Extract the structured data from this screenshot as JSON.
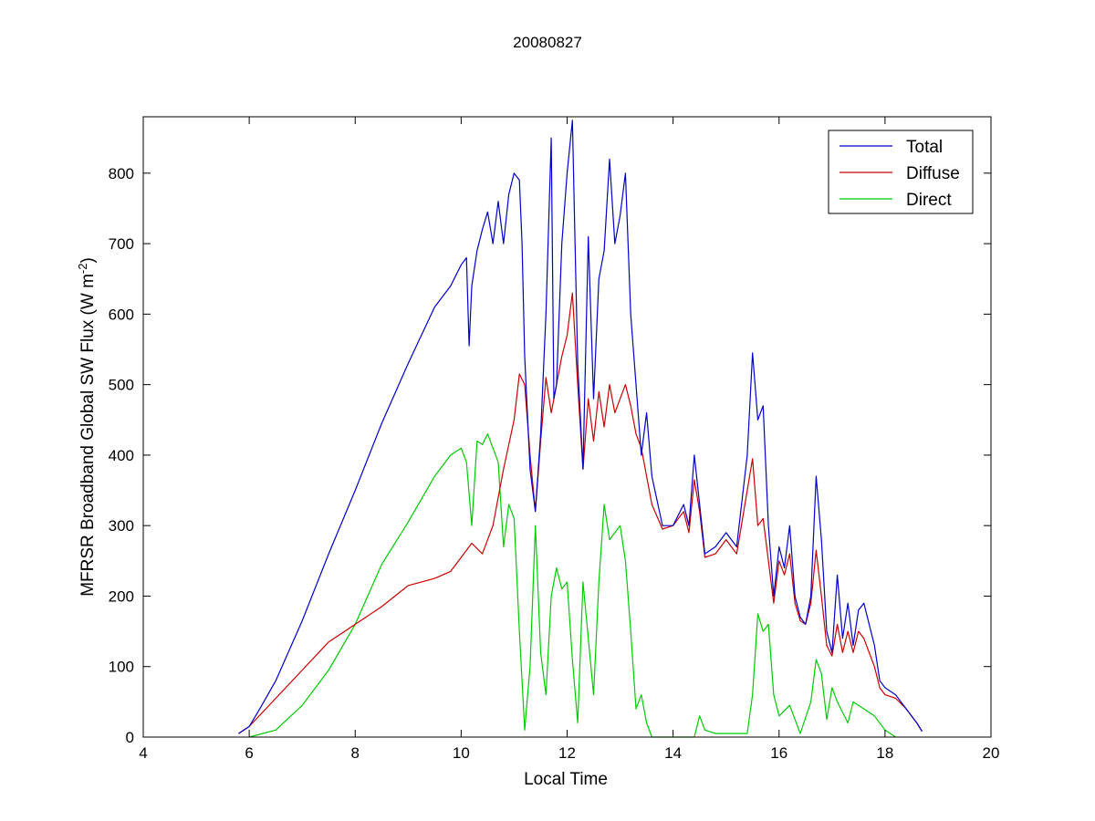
{
  "chart_data": {
    "type": "line",
    "title": "20080827",
    "xlabel": "Local Time",
    "ylabel_main": "MFRSR Broadband Global SW Flux (W m",
    "ylabel_sup": "-2",
    "ylabel_tail": ")",
    "xlim": [
      4,
      20
    ],
    "ylim": [
      0,
      880
    ],
    "xticks": [
      4,
      6,
      8,
      10,
      12,
      14,
      16,
      18,
      20
    ],
    "yticks": [
      0,
      100,
      200,
      300,
      400,
      500,
      600,
      700,
      800
    ],
    "grid": false,
    "legend_position": "top-right",
    "series": [
      {
        "name": "Total",
        "color": "#0000cc",
        "x": [
          5.8,
          6.0,
          6.2,
          6.5,
          7.0,
          7.5,
          8.0,
          8.5,
          9.0,
          9.5,
          9.8,
          10.0,
          10.1,
          10.15,
          10.2,
          10.3,
          10.4,
          10.5,
          10.6,
          10.7,
          10.8,
          10.9,
          11.0,
          11.1,
          11.15,
          11.2,
          11.3,
          11.4,
          11.5,
          11.6,
          11.7,
          11.75,
          11.8,
          11.9,
          12.0,
          12.1,
          12.15,
          12.2,
          12.3,
          12.4,
          12.5,
          12.6,
          12.7,
          12.8,
          12.9,
          13.0,
          13.1,
          13.2,
          13.3,
          13.4,
          13.5,
          13.6,
          13.8,
          14.0,
          14.2,
          14.3,
          14.4,
          14.5,
          14.6,
          14.8,
          15.0,
          15.2,
          15.4,
          15.5,
          15.6,
          15.7,
          15.8,
          15.9,
          16.0,
          16.1,
          16.2,
          16.3,
          16.4,
          16.5,
          16.6,
          16.7,
          16.8,
          16.9,
          17.0,
          17.1,
          17.2,
          17.3,
          17.4,
          17.5,
          17.6,
          17.7,
          17.8,
          17.9,
          18.0,
          18.2,
          18.4,
          18.6,
          18.7
        ],
        "y": [
          5,
          15,
          40,
          80,
          165,
          260,
          350,
          445,
          530,
          610,
          640,
          670,
          680,
          555,
          640,
          690,
          720,
          745,
          700,
          760,
          700,
          770,
          800,
          790,
          700,
          540,
          380,
          320,
          430,
          600,
          850,
          480,
          500,
          700,
          800,
          875,
          700,
          530,
          380,
          710,
          480,
          650,
          690,
          820,
          700,
          740,
          800,
          600,
          500,
          400,
          460,
          370,
          300,
          300,
          330,
          300,
          400,
          330,
          260,
          270,
          290,
          270,
          400,
          545,
          450,
          470,
          300,
          200,
          270,
          240,
          300,
          200,
          170,
          160,
          200,
          370,
          280,
          150,
          120,
          230,
          140,
          190,
          130,
          180,
          190,
          160,
          130,
          80,
          70,
          60,
          40,
          20,
          8
        ]
      },
      {
        "name": "Diffuse",
        "color": "#cc0000",
        "x": [
          5.8,
          6.0,
          6.5,
          7.0,
          7.5,
          8.0,
          8.5,
          9.0,
          9.5,
          9.8,
          10.0,
          10.2,
          10.4,
          10.6,
          10.8,
          11.0,
          11.1,
          11.2,
          11.3,
          11.4,
          11.5,
          11.6,
          11.7,
          11.8,
          11.9,
          12.0,
          12.1,
          12.2,
          12.3,
          12.4,
          12.5,
          12.6,
          12.7,
          12.8,
          12.9,
          13.0,
          13.1,
          13.2,
          13.3,
          13.4,
          13.5,
          13.6,
          13.8,
          14.0,
          14.2,
          14.3,
          14.4,
          14.5,
          14.6,
          14.8,
          15.0,
          15.2,
          15.4,
          15.5,
          15.6,
          15.7,
          15.8,
          15.9,
          16.0,
          16.1,
          16.2,
          16.3,
          16.4,
          16.5,
          16.6,
          16.7,
          16.8,
          16.9,
          17.0,
          17.1,
          17.2,
          17.3,
          17.4,
          17.5,
          17.6,
          17.7,
          17.8,
          17.9,
          18.0,
          18.2,
          18.4,
          18.6,
          18.7
        ],
        "y": [
          5,
          15,
          55,
          95,
          135,
          160,
          185,
          215,
          225,
          235,
          255,
          275,
          260,
          300,
          380,
          450,
          515,
          500,
          400,
          320,
          420,
          510,
          460,
          500,
          540,
          570,
          630,
          500,
          380,
          480,
          420,
          490,
          440,
          500,
          460,
          480,
          500,
          470,
          430,
          410,
          370,
          330,
          295,
          300,
          320,
          290,
          365,
          320,
          255,
          260,
          280,
          260,
          350,
          395,
          300,
          310,
          250,
          190,
          250,
          230,
          260,
          190,
          165,
          160,
          190,
          265,
          200,
          130,
          115,
          160,
          120,
          150,
          120,
          150,
          140,
          120,
          100,
          70,
          60,
          55,
          40,
          20,
          8
        ]
      },
      {
        "name": "Direct",
        "color": "#00cc00",
        "x": [
          6.0,
          6.5,
          7.0,
          7.5,
          8.0,
          8.5,
          9.0,
          9.5,
          9.8,
          10.0,
          10.1,
          10.2,
          10.3,
          10.4,
          10.5,
          10.6,
          10.7,
          10.8,
          10.9,
          11.0,
          11.1,
          11.2,
          11.3,
          11.4,
          11.5,
          11.6,
          11.7,
          11.8,
          11.9,
          12.0,
          12.1,
          12.2,
          12.3,
          12.4,
          12.5,
          12.6,
          12.7,
          12.8,
          12.9,
          13.0,
          13.1,
          13.2,
          13.3,
          13.4,
          13.5,
          13.6,
          14.0,
          14.4,
          14.5,
          14.6,
          14.8,
          15.0,
          15.4,
          15.5,
          15.6,
          15.7,
          15.8,
          15.9,
          16.0,
          16.2,
          16.4,
          16.6,
          16.7,
          16.8,
          16.9,
          17.0,
          17.1,
          17.3,
          17.4,
          17.6,
          17.8,
          18.0,
          18.2
        ],
        "y": [
          0,
          10,
          45,
          95,
          160,
          245,
          305,
          370,
          400,
          410,
          390,
          300,
          420,
          415,
          430,
          410,
          390,
          270,
          330,
          310,
          150,
          10,
          100,
          300,
          120,
          60,
          200,
          240,
          210,
          220,
          110,
          20,
          220,
          140,
          60,
          220,
          330,
          280,
          290,
          300,
          250,
          150,
          40,
          60,
          20,
          0,
          0,
          0,
          30,
          10,
          5,
          5,
          5,
          60,
          175,
          150,
          160,
          60,
          30,
          45,
          5,
          50,
          110,
          90,
          25,
          70,
          50,
          20,
          50,
          40,
          30,
          10,
          0
        ]
      }
    ]
  }
}
